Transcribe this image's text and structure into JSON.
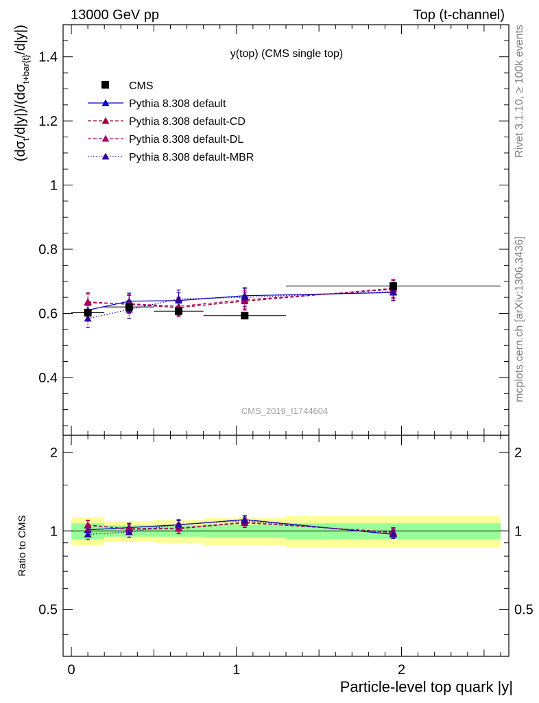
{
  "header": {
    "left": "13000 GeV pp",
    "right": "Top (t-channel)"
  },
  "side_labels": {
    "rivet": "Rivet 3.1.10, ≥ 100k events",
    "source": "mcplots.cern.ch [arXiv:1306.3436]"
  },
  "plot_title": "y(top) (CMS single top)",
  "watermark": "CMS_2019_I1744604",
  "colors": {
    "cms": "#000000",
    "default": "#0000cc",
    "cd": "#990033",
    "dl": "#aa0066",
    "mbr": "#330099",
    "band_inner": "#99ff99",
    "band_outer": "#ffff99"
  },
  "chart_data": [
    {
      "type": "scatter",
      "title": "y(top) (CMS single top)",
      "ylabel": "(dσt/d|y|)/(dσt+bar{t}/d|y|)",
      "ylabel_parts": {
        "a": "(dσ",
        "sub_a": "t",
        "b": "/d|y|)/(dσ",
        "sub_b": "t+bar{t}",
        "c": "/d|y|)"
      },
      "xlim": [
        -0.05,
        2.65
      ],
      "ylim": [
        0.22,
        1.5
      ],
      "yticks": [
        0.4,
        0.6,
        0.8,
        1.0,
        1.2,
        1.4
      ],
      "ytick_labels": [
        "0.4",
        "0.6",
        "0.8",
        "1",
        "1.2",
        "1.4"
      ],
      "legend_position": "top-left",
      "cms": {
        "name": "CMS",
        "x": [
          0.1,
          0.35,
          0.65,
          1.05,
          1.95
        ],
        "xerr": [
          0.1,
          0.15,
          0.15,
          0.25,
          0.65
        ],
        "y": [
          0.602,
          0.62,
          0.607,
          0.593,
          0.685
        ]
      },
      "series": [
        {
          "name": "Pythia 8.308 default",
          "style": "solid",
          "x": [
            0.1,
            0.35,
            0.65,
            1.05,
            1.95
          ],
          "y": [
            0.61,
            0.638,
            0.64,
            0.655,
            0.665
          ],
          "err": [
            0.025,
            0.025,
            0.025,
            0.025,
            0.025
          ]
        },
        {
          "name": "Pythia 8.308 default-CD",
          "style": "dash",
          "x": [
            0.1,
            0.35,
            0.65,
            1.05,
            1.95
          ],
          "y": [
            0.636,
            0.628,
            0.618,
            0.638,
            0.678
          ],
          "err": [
            0.028,
            0.028,
            0.028,
            0.028,
            0.028
          ]
        },
        {
          "name": "Pythia 8.308 default-DL",
          "style": "dash",
          "x": [
            0.1,
            0.35,
            0.65,
            1.05,
            1.95
          ],
          "y": [
            0.633,
            0.63,
            0.622,
            0.642,
            0.675
          ],
          "err": [
            0.028,
            0.028,
            0.028,
            0.028,
            0.028
          ]
        },
        {
          "name": "Pythia 8.308 default-MBR",
          "style": "dot",
          "x": [
            0.1,
            0.35,
            0.65,
            1.05,
            1.95
          ],
          "y": [
            0.584,
            0.612,
            0.645,
            0.65,
            0.668
          ],
          "err": [
            0.028,
            0.028,
            0.028,
            0.028,
            0.028
          ]
        }
      ]
    },
    {
      "type": "scatter",
      "ylabel": "Ratio to CMS",
      "xlabel": "Particle-level top quark |y|",
      "xlim": [
        -0.05,
        2.65
      ],
      "ylim": [
        0.33,
        2.33
      ],
      "ylog": true,
      "yticks": [
        0.5,
        1,
        2
      ],
      "ytick_labels": [
        "0.5",
        "1",
        "2"
      ],
      "xticks": [
        0,
        1,
        2
      ],
      "xtick_labels": [
        "0",
        "1",
        "2"
      ],
      "bands": [
        {
          "x0": 0.0,
          "x1": 0.2,
          "inner": [
            0.93,
            1.07
          ],
          "outer": [
            0.88,
            1.13
          ]
        },
        {
          "x0": 0.2,
          "x1": 0.5,
          "inner": [
            0.95,
            1.05
          ],
          "outer": [
            0.91,
            1.09
          ]
        },
        {
          "x0": 0.5,
          "x1": 0.8,
          "inner": [
            0.95,
            1.05
          ],
          "outer": [
            0.9,
            1.1
          ]
        },
        {
          "x0": 0.8,
          "x1": 1.3,
          "inner": [
            0.94,
            1.06
          ],
          "outer": [
            0.88,
            1.12
          ]
        },
        {
          "x0": 1.3,
          "x1": 2.6,
          "inner": [
            0.93,
            1.07
          ],
          "outer": [
            0.86,
            1.14
          ]
        }
      ],
      "series": [
        {
          "name": "Pythia 8.308 default",
          "x": [
            0.1,
            0.35,
            0.65,
            1.05,
            1.95
          ],
          "y": [
            1.01,
            1.03,
            1.055,
            1.105,
            0.97
          ],
          "err": [
            0.04,
            0.04,
            0.04,
            0.04,
            0.035
          ]
        },
        {
          "name": "Pythia 8.308 default-CD",
          "x": [
            0.1,
            0.35,
            0.65,
            1.05,
            1.95
          ],
          "y": [
            1.055,
            1.015,
            1.02,
            1.075,
            0.99
          ],
          "err": [
            0.045,
            0.045,
            0.045,
            0.045,
            0.04
          ]
        },
        {
          "name": "Pythia 8.308 default-DL",
          "x": [
            0.1,
            0.35,
            0.65,
            1.05,
            1.95
          ],
          "y": [
            1.05,
            1.02,
            1.025,
            1.08,
            0.985
          ],
          "err": [
            0.045,
            0.045,
            0.045,
            0.045,
            0.04
          ]
        },
        {
          "name": "Pythia 8.308 default-MBR",
          "x": [
            0.1,
            0.35,
            0.65,
            1.05,
            1.95
          ],
          "y": [
            0.97,
            0.99,
            1.06,
            1.095,
            0.975
          ],
          "err": [
            0.045,
            0.045,
            0.045,
            0.045,
            0.04
          ]
        }
      ]
    }
  ]
}
